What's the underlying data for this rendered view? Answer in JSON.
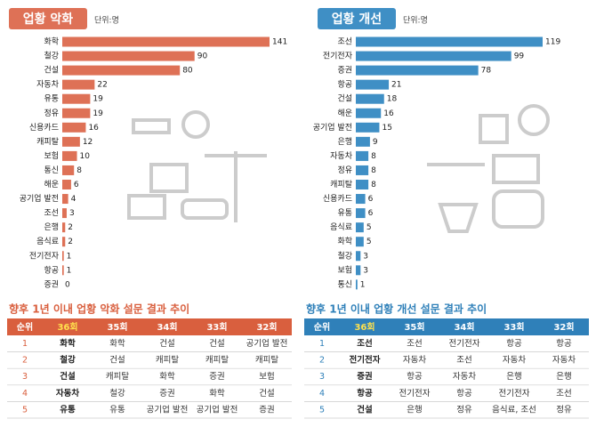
{
  "chart_data": [
    {
      "type": "bar",
      "horizontal": true,
      "title": "업황 악화",
      "subtitle": "단위:명",
      "color": "#de7156",
      "categories": [
        "화학",
        "철강",
        "건설",
        "자동차",
        "유통",
        "정유",
        "신용카드",
        "캐피탈",
        "보험",
        "통신",
        "해운",
        "공기업 발전",
        "조선",
        "은행",
        "음식료",
        "전기전자",
        "항공",
        "증권"
      ],
      "values": [
        141,
        90,
        80,
        22,
        19,
        19,
        16,
        12,
        10,
        8,
        6,
        4,
        3,
        2,
        2,
        1,
        1,
        0
      ],
      "xlim": [
        0,
        141
      ]
    },
    {
      "type": "bar",
      "horizontal": true,
      "title": "업황 개선",
      "subtitle": "단위:명",
      "color": "#3f8fc5",
      "categories": [
        "조선",
        "전기전자",
        "증권",
        "항공",
        "건설",
        "해운",
        "공기업 발전",
        "은행",
        "자동차",
        "정유",
        "캐피탈",
        "신용카드",
        "유통",
        "음식료",
        "화학",
        "철강",
        "보험",
        "통신"
      ],
      "values": [
        119,
        99,
        78,
        21,
        18,
        16,
        15,
        9,
        8,
        8,
        8,
        6,
        6,
        5,
        5,
        3,
        3,
        1
      ],
      "xlim": [
        0,
        119
      ]
    }
  ],
  "tables": [
    {
      "title": "향후 1년 이내 업황 악화 설문 결과 추이",
      "color": "#d95f3e",
      "highlight_color": "#ffe14d",
      "header": [
        "순위",
        "36회",
        "35회",
        "34회",
        "33회",
        "32회"
      ],
      "rows": [
        [
          "1",
          "화학",
          "화학",
          "건설",
          "건설",
          "공기업 발전"
        ],
        [
          "2",
          "철강",
          "건설",
          "캐피탈",
          "캐피탈",
          "캐피탈"
        ],
        [
          "3",
          "건설",
          "캐피탈",
          "화학",
          "증권",
          "보험"
        ],
        [
          "4",
          "자동차",
          "철강",
          "증권",
          "화학",
          "건설"
        ],
        [
          "5",
          "유통",
          "유통",
          "공기업 발전",
          "공기업 발전",
          "증권"
        ]
      ]
    },
    {
      "title": "향후 1년 이내 업황 개선 설문 결과 추이",
      "color": "#2f80b9",
      "highlight_color": "#ffe14d",
      "header": [
        "순위",
        "36회",
        "35회",
        "34회",
        "33회",
        "32회"
      ],
      "rows": [
        [
          "1",
          "조선",
          "조선",
          "전기전자",
          "항공",
          "항공"
        ],
        [
          "2",
          "전기전자",
          "자동차",
          "조선",
          "자동차",
          "자동차"
        ],
        [
          "3",
          "증권",
          "항공",
          "자동차",
          "은행",
          "은행"
        ],
        [
          "4",
          "항공",
          "전기전자",
          "항공",
          "전기전자",
          "조선"
        ],
        [
          "5",
          "건설",
          "은행",
          "정유",
          "음식료, 조선",
          "정유"
        ]
      ]
    }
  ]
}
